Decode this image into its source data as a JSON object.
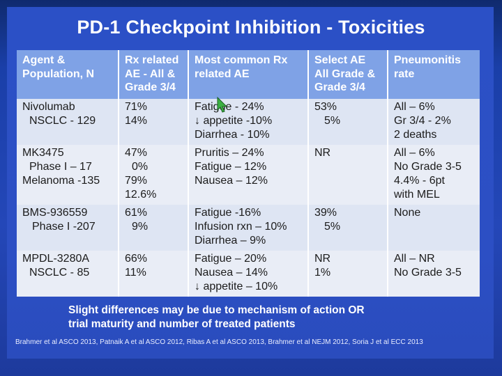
{
  "slide": {
    "title": "PD-1 Checkpoint Inhibition - Toxicities",
    "note_lines": [
      "Slight differences may be due to mechanism of action OR",
      "trial maturity and number of treated patients"
    ],
    "references": "Brahmer et al ASCO 2013, Patnaik A et al ASCO 2012, Ribas A et al ASCO 2013, Brahmer et al NEJM 2012, Soria J et al ECC 2013"
  },
  "table": {
    "headers": [
      [
        "Agent  &",
        "Population, N"
      ],
      [
        "Rx related",
        "AE - All &",
        "Grade 3/4"
      ],
      [
        "Most common Rx",
        "related AE"
      ],
      [
        "Select AE",
        "All Grade &",
        "Grade 3/4"
      ],
      [
        "Pneumonitis",
        "rate"
      ]
    ],
    "rows": [
      {
        "agent": [
          "Nivolumab",
          "NSCLC - 129"
        ],
        "rx_ae": [
          "71%",
          "14%"
        ],
        "common_ae": [
          "Fatigue - 24%",
          "↓ appetite -10%",
          "Diarrhea - 10%"
        ],
        "select_ae": [
          "53%",
          "5%"
        ],
        "pneumonitis": [
          "All – 6%",
          "Gr 3/4 - 2%",
          "2 deaths"
        ]
      },
      {
        "agent": [
          "MK3475",
          "Phase I – 17",
          "Melanoma -135"
        ],
        "rx_ae": [
          "47%",
          "0%",
          "79%",
          "12.6%"
        ],
        "common_ae": [
          "Pruritis – 24%",
          "Fatigue – 12%",
          "Nausea – 12%"
        ],
        "select_ae": [
          "NR"
        ],
        "pneumonitis": [
          "All – 6%",
          "No Grade 3-5",
          "4.4% - 6pt",
          "with MEL"
        ]
      },
      {
        "agent": [
          "BMS-936559",
          "Phase I -207"
        ],
        "rx_ae": [
          "61%",
          "9%"
        ],
        "common_ae": [
          "Fatigue -16%",
          "Infusion rxn – 10%",
          "Diarrhea – 9%"
        ],
        "select_ae": [
          "39%",
          "5%"
        ],
        "pneumonitis": [
          "None"
        ]
      },
      {
        "agent": [
          "MPDL-3280A",
          "NSCLC - 85"
        ],
        "rx_ae": [
          "66%",
          "11%"
        ],
        "common_ae": [
          "Fatigue – 20%",
          "Nausea – 14%",
          "↓ appetite – 10%"
        ],
        "select_ae": [
          "NR",
          "1%"
        ],
        "pneumonitis": [
          "All – NR",
          "No Grade 3-5"
        ]
      }
    ]
  },
  "colors": {
    "slide_bg": "#2b50c6",
    "header_fill": "#7fa2e6",
    "row_fill": "#dee5f3",
    "cursor": "#3cb043"
  },
  "icons": {
    "cursor": "mouse-pointer-icon"
  }
}
